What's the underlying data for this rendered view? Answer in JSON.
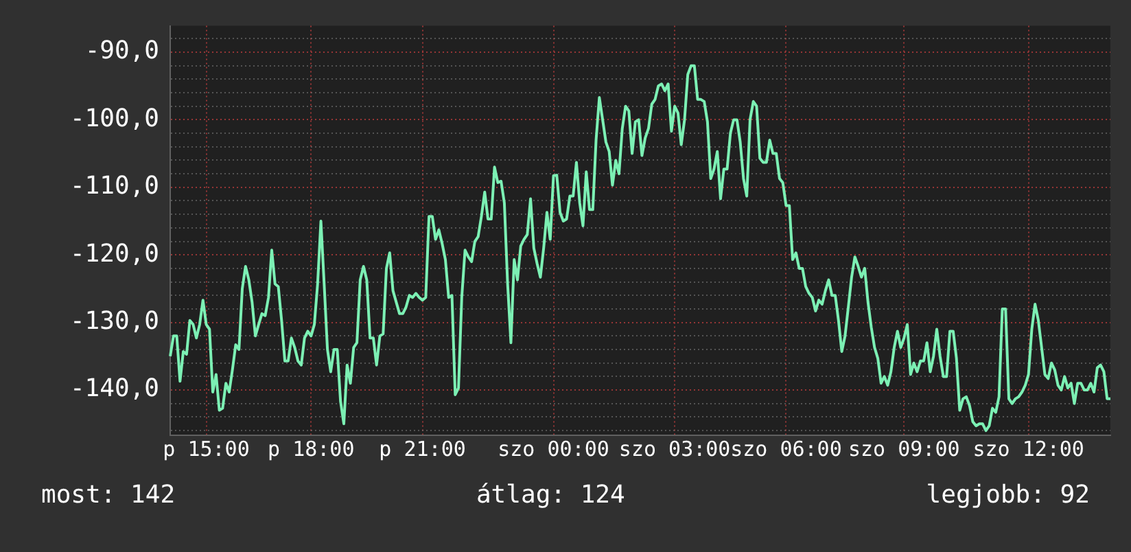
{
  "chart_data": {
    "type": "line",
    "marker": "none",
    "grid": true,
    "legend": false,
    "ylim": [
      -146.7,
      -86.1
    ],
    "categories": [
      null,
      null,
      null,
      null,
      null,
      null,
      null,
      null,
      null,
      null,
      null,
      "p 15:00",
      null,
      null,
      null,
      null,
      null,
      null,
      null,
      null,
      null,
      null,
      null,
      null,
      null,
      null,
      null,
      null,
      null,
      null,
      null,
      null,
      null,
      null,
      null,
      null,
      null,
      null,
      null,
      null,
      null,
      null,
      null,
      "p 18:00",
      null,
      null,
      null,
      null,
      null,
      null,
      null,
      null,
      null,
      null,
      null,
      null,
      null,
      null,
      null,
      null,
      null,
      null,
      null,
      null,
      null,
      null,
      null,
      null,
      null,
      null,
      null,
      null,
      null,
      null,
      null,
      null,
      null,
      "p 21:00",
      null,
      null,
      null,
      null,
      null,
      null,
      null,
      null,
      null,
      null,
      null,
      null,
      null,
      null,
      null,
      null,
      null,
      null,
      null,
      null,
      null,
      null,
      null,
      null,
      null,
      null,
      null,
      null,
      null,
      null,
      null,
      null,
      null,
      null,
      null,
      null,
      null,
      null,
      null,
      "szo 00:00",
      null,
      null,
      null,
      null,
      null,
      null,
      null,
      null,
      null,
      null,
      null,
      null,
      null,
      null,
      null,
      null,
      null,
      null,
      null,
      null,
      null,
      null,
      null,
      null,
      null,
      null,
      null,
      null,
      null,
      null,
      null,
      null,
      null,
      null,
      null,
      null,
      "szo 03:00",
      null,
      null,
      null,
      null,
      null,
      null,
      null,
      null,
      null,
      null,
      null,
      null,
      null,
      null,
      null,
      null,
      null,
      null,
      null,
      null,
      null,
      null,
      null,
      null,
      null,
      null,
      null,
      null,
      null,
      null,
      null,
      null,
      null,
      "szo 06:00",
      null,
      null,
      null,
      null,
      null,
      null,
      null,
      null,
      null,
      null,
      null,
      null,
      null,
      null,
      null,
      null,
      null,
      null,
      null,
      null,
      null,
      null,
      null,
      null,
      null,
      null,
      null,
      null,
      null,
      null,
      null,
      null,
      null,
      null,
      null,
      "szo 09:00",
      null,
      null,
      null,
      null,
      null,
      null,
      null,
      null,
      null,
      null,
      null,
      null,
      null,
      null,
      null,
      null,
      null,
      null,
      null,
      null,
      null,
      null,
      null,
      null,
      null,
      null,
      null,
      null,
      null,
      null,
      null,
      null,
      null,
      null,
      null,
      null,
      null,
      "szo 12:00",
      null,
      null,
      null,
      null,
      null,
      null,
      null,
      null,
      null,
      null,
      null,
      null,
      null,
      null,
      null,
      null,
      null,
      null,
      null,
      null,
      null,
      null,
      null,
      null,
      null
    ],
    "yticks": [
      {
        "value": -146,
        "label": null
      },
      {
        "value": -144,
        "label": null
      },
      {
        "value": -142,
        "label": null
      },
      {
        "value": -140,
        "label": "-140,0"
      },
      {
        "value": -138,
        "label": null
      },
      {
        "value": -136,
        "label": null
      },
      {
        "value": -134,
        "label": null
      },
      {
        "value": -132,
        "label": null
      },
      {
        "value": -130,
        "label": "-130,0"
      },
      {
        "value": -128,
        "label": null
      },
      {
        "value": -126,
        "label": null
      },
      {
        "value": -124,
        "label": null
      },
      {
        "value": -122,
        "label": null
      },
      {
        "value": -120,
        "label": "-120,0"
      },
      {
        "value": -118,
        "label": null
      },
      {
        "value": -116,
        "label": null
      },
      {
        "value": -114,
        "label": null
      },
      {
        "value": -112,
        "label": null
      },
      {
        "value": -110,
        "label": "-110,0"
      },
      {
        "value": -108,
        "label": null
      },
      {
        "value": -106,
        "label": null
      },
      {
        "value": -104,
        "label": null
      },
      {
        "value": -102,
        "label": null
      },
      {
        "value": -100,
        "label": "-100,0"
      },
      {
        "value": -98,
        "label": null
      },
      {
        "value": -96,
        "label": null
      },
      {
        "value": -94,
        "label": null
      },
      {
        "value": -92,
        "label": null
      },
      {
        "value": -90,
        "label": "-90,0"
      },
      {
        "value": -88,
        "label": null
      }
    ],
    "annotations": [
      "most: 142",
      "átlag: 124",
      "legjobb: 92"
    ],
    "series": [
      {
        "color": "#7cf0b4",
        "values": [
          -135.0,
          -132.0,
          -132.0,
          -138.7,
          -134.3,
          -134.7,
          -129.7,
          -130.3,
          -132.3,
          -130.3,
          -126.7,
          -130.3,
          -131.0,
          -140.3,
          -137.7,
          -143.0,
          -142.7,
          -139.0,
          -140.3,
          -137.0,
          -133.3,
          -134.0,
          -125.0,
          -121.7,
          -123.7,
          -127.0,
          -132.0,
          -130.3,
          -128.7,
          -129.0,
          -126.3,
          -119.3,
          -124.3,
          -124.7,
          -129.7,
          -135.7,
          -135.7,
          -132.3,
          -133.7,
          -135.7,
          -136.3,
          -132.3,
          -131.3,
          -132.0,
          -130.3,
          -124.3,
          -115.0,
          -124.3,
          -134.0,
          -137.3,
          -134.0,
          -134.0,
          -141.7,
          -145.0,
          -136.3,
          -139.0,
          -133.7,
          -133.0,
          -123.7,
          -121.7,
          -123.7,
          -132.3,
          -132.3,
          -136.3,
          -132.0,
          -131.7,
          -122.0,
          -119.7,
          -125.3,
          -127.0,
          -128.7,
          -128.7,
          -127.7,
          -126.0,
          -126.3,
          -125.7,
          -126.3,
          -126.7,
          -126.3,
          -114.3,
          -114.3,
          -117.7,
          -116.3,
          -118.3,
          -120.7,
          -126.3,
          -126.0,
          -140.7,
          -139.7,
          -126.3,
          -119.3,
          -120.3,
          -121.0,
          -118.0,
          -117.3,
          -114.3,
          -110.7,
          -114.7,
          -114.7,
          -107.0,
          -109.3,
          -109.1,
          -112.3,
          -124.3,
          -133.0,
          -120.7,
          -123.7,
          -118.7,
          -117.7,
          -117.0,
          -111.7,
          -119.0,
          -121.3,
          -123.3,
          -119.0,
          -113.7,
          -117.7,
          -108.3,
          -108.2,
          -113.7,
          -115.0,
          -114.7,
          -111.3,
          -111.3,
          -106.3,
          -112.3,
          -115.7,
          -107.7,
          -113.3,
          -113.3,
          -103.0,
          -96.7,
          -100.0,
          -103.3,
          -104.7,
          -109.7,
          -106.0,
          -108.0,
          -101.3,
          -98.0,
          -98.7,
          -105.0,
          -100.3,
          -100.0,
          -105.3,
          -102.7,
          -101.3,
          -97.7,
          -97.0,
          -95.0,
          -94.7,
          -95.7,
          -94.7,
          -101.7,
          -98.0,
          -99.0,
          -103.7,
          -100.0,
          -93.3,
          -92.0,
          -92.0,
          -97.0,
          -97.0,
          -97.3,
          -100.3,
          -108.7,
          -107.3,
          -104.7,
          -111.7,
          -107.3,
          -107.3,
          -102.0,
          -100.0,
          -100.0,
          -103.3,
          -108.7,
          -111.3,
          -100.0,
          -97.3,
          -98.0,
          -105.7,
          -106.3,
          -106.3,
          -103.0,
          -105.0,
          -105.0,
          -108.7,
          -109.3,
          -112.7,
          -112.7,
          -120.7,
          -119.7,
          -122.0,
          -122.0,
          -124.7,
          -125.7,
          -126.3,
          -128.3,
          -126.7,
          -127.3,
          -125.3,
          -123.7,
          -126.0,
          -126.0,
          -129.7,
          -134.3,
          -132.0,
          -127.7,
          -123.3,
          -120.3,
          -121.7,
          -123.3,
          -122.0,
          -127.0,
          -130.7,
          -133.7,
          -135.3,
          -139.0,
          -138.0,
          -139.3,
          -137.3,
          -133.7,
          -131.3,
          -133.7,
          -132.3,
          -130.3,
          -137.7,
          -136.0,
          -137.3,
          -135.7,
          -135.7,
          -133.0,
          -137.3,
          -135.0,
          -131.0,
          -135.0,
          -138.0,
          -138.0,
          -131.3,
          -131.3,
          -135.3,
          -143.0,
          -141.3,
          -141.0,
          -142.3,
          -144.7,
          -145.3,
          -145.0,
          -145.0,
          -146.0,
          -145.3,
          -142.7,
          -143.3,
          -141.0,
          -128.0,
          -128.0,
          -141.3,
          -142.0,
          -141.3,
          -141.0,
          -140.3,
          -139.3,
          -137.7,
          -131.0,
          -127.3,
          -129.7,
          -133.7,
          -137.7,
          -138.3,
          -136.0,
          -137.0,
          -139.3,
          -140.0,
          -138.0,
          -139.7,
          -139.0,
          -142.0,
          -139.0,
          -139.0,
          -140.0,
          -140.0,
          -139.0,
          -140.3,
          -136.7,
          -136.3,
          -137.3,
          -141.3,
          -141.3
        ]
      }
    ]
  }
}
